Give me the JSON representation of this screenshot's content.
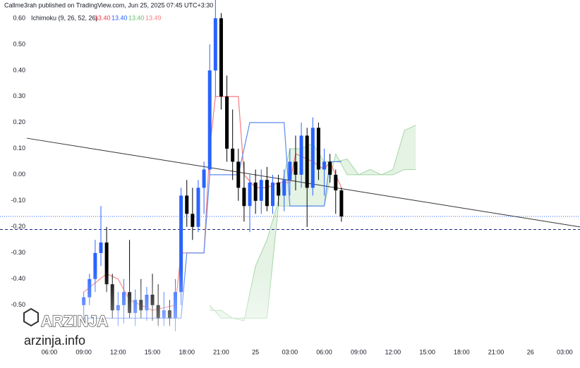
{
  "chart_data": {
    "type": "candlestick",
    "title": "Callme3rah published on TradingView.com, Jun 25, 2025 07:45 UTC+3:30",
    "indicator_label": "Ichimoku (9, 26, 52, 26)",
    "indicator_values": [
      {
        "text": "13.40",
        "color": "#f23645"
      },
      {
        "text": "13.40",
        "color": "#2962ff"
      },
      {
        "text": "13.40",
        "color": "#66bb6a"
      },
      {
        "text": "13.49",
        "color": "#f77c80"
      }
    ],
    "watermark": {
      "brand": "ARZINJA",
      "site": "arzinja.info"
    },
    "xlim": [
      1.69,
      52.33
    ],
    "ylim": [
      -0.66,
      0.67
    ],
    "xticks": [
      {
        "value": 6,
        "label": "06:00"
      },
      {
        "value": 9,
        "label": "09:00"
      },
      {
        "value": 12,
        "label": "12:00"
      },
      {
        "value": 15,
        "label": "15:00"
      },
      {
        "value": 18,
        "label": "18:00"
      },
      {
        "value": 21,
        "label": "21:00"
      },
      {
        "value": 24,
        "label": "25"
      },
      {
        "value": 27,
        "label": "03:00"
      },
      {
        "value": 30,
        "label": "06:00"
      },
      {
        "value": 33,
        "label": "09:00"
      },
      {
        "value": 36,
        "label": "12:00"
      },
      {
        "value": 39,
        "label": "15:00"
      },
      {
        "value": 42,
        "label": "18:00"
      },
      {
        "value": 45,
        "label": "21:00"
      },
      {
        "value": 48,
        "label": "26"
      },
      {
        "value": 51,
        "label": "03:00"
      }
    ],
    "yticks": [
      {
        "value": 0.6,
        "label": "0.60"
      },
      {
        "value": 0.5,
        "label": "0.50"
      },
      {
        "value": 0.4,
        "label": "0.40"
      },
      {
        "value": 0.3,
        "label": "0.30"
      },
      {
        "value": 0.2,
        "label": "0.20"
      },
      {
        "value": 0.1,
        "label": "0.10"
      },
      {
        "value": 0,
        "label": "0.00"
      },
      {
        "value": -0.1,
        "label": "-0.10"
      },
      {
        "value": -0.2,
        "label": "-0.20"
      },
      {
        "value": -0.3,
        "label": "-0.30"
      },
      {
        "value": -0.4,
        "label": "-0.40"
      },
      {
        "value": -0.5,
        "label": "-0.50"
      }
    ],
    "up_color": "#2962ff",
    "down_color": "#000000",
    "candles": {
      "x": [
        9,
        9.5,
        10,
        10.5,
        11,
        11.5,
        12,
        12.5,
        13,
        13.5,
        14,
        14.5,
        15,
        15.5,
        16,
        16.5,
        17,
        17.5,
        18,
        18.5,
        19,
        19.5,
        20,
        20.5,
        21,
        21.5,
        22,
        22.5,
        23,
        23.5,
        24,
        24.5,
        25,
        25.5,
        26,
        26.5,
        27,
        27.5,
        28,
        28.5,
        29,
        29.5,
        30,
        30.5,
        31,
        31.5
      ],
      "open": [
        -0.5,
        -0.47,
        -0.4,
        -0.3,
        -0.26,
        -0.42,
        -0.52,
        -0.5,
        -0.45,
        -0.53,
        -0.48,
        -0.52,
        -0.46,
        -0.5,
        -0.55,
        -0.52,
        -0.55,
        -0.45,
        -0.08,
        -0.15,
        -0.2,
        -0.05,
        0.02,
        0.4,
        0.6,
        0.3,
        0.1,
        0.05,
        -0.05,
        -0.12,
        -0.03,
        -0.1,
        -0.02,
        -0.12,
        -0.03,
        -0.08,
        -0.02,
        0.05,
        0,
        0.15,
        -0.05,
        0.18,
        0.02,
        0.05,
        0,
        -0.06
      ],
      "high": [
        -0.45,
        -0.38,
        -0.25,
        -0.12,
        -0.2,
        -0.38,
        -0.45,
        -0.4,
        -0.25,
        -0.44,
        -0.4,
        -0.43,
        -0.38,
        -0.42,
        -0.45,
        -0.48,
        -0.4,
        -0.05,
        -0.02,
        -0.05,
        -0.02,
        0.05,
        0.5,
        0.67,
        0.62,
        0.38,
        0.25,
        0.1,
        0.05,
        0,
        0.02,
        0.02,
        0.03,
        0,
        0,
        0.02,
        0.1,
        0.15,
        0.2,
        0.18,
        0.22,
        0.2,
        0.1,
        0.08,
        0.02,
        -0.05
      ],
      "low": [
        -0.56,
        -0.5,
        -0.45,
        -0.35,
        -0.45,
        -0.55,
        -0.58,
        -0.57,
        -0.55,
        -0.58,
        -0.55,
        -0.56,
        -0.56,
        -0.58,
        -0.58,
        -0.58,
        -0.6,
        -0.5,
        -0.2,
        -0.25,
        -0.22,
        -0.15,
        0,
        0.3,
        0.25,
        0.05,
        -0.02,
        -0.1,
        -0.18,
        -0.22,
        -0.15,
        -0.15,
        -0.14,
        -0.15,
        -0.12,
        -0.14,
        -0.08,
        -0.06,
        -0.05,
        -0.2,
        -0.08,
        -0.02,
        -0.08,
        -0.03,
        -0.15,
        -0.18
      ],
      "close": [
        -0.47,
        -0.4,
        -0.3,
        -0.26,
        -0.42,
        -0.52,
        -0.5,
        -0.45,
        -0.53,
        -0.48,
        -0.52,
        -0.46,
        -0.5,
        -0.55,
        -0.52,
        -0.55,
        -0.45,
        -0.08,
        -0.15,
        -0.2,
        -0.05,
        0.02,
        0.4,
        0.6,
        0.3,
        0.1,
        0.05,
        -0.05,
        -0.12,
        -0.03,
        -0.1,
        -0.02,
        -0.12,
        -0.03,
        -0.08,
        -0.02,
        0.05,
        0,
        0.15,
        -0.05,
        0.18,
        0.02,
        0.05,
        0,
        -0.06,
        -0.16
      ]
    },
    "lines": [
      {
        "color": "#f77c80",
        "x": [
          9,
          11,
          12,
          13,
          15,
          17,
          17.5,
          18,
          19.5,
          20,
          20.5,
          21,
          22.5,
          23,
          24,
          25,
          26,
          27,
          27.5,
          29,
          30,
          30.5,
          31.5
        ],
        "values": [
          -0.45,
          -0.38,
          -0.4,
          -0.48,
          -0.52,
          -0.5,
          -0.3,
          -0.3,
          -0.3,
          0.1,
          0.3,
          0.3,
          0.3,
          0,
          -0.05,
          -0.05,
          -0.03,
          -0.03,
          0.08,
          0.05,
          0.02,
          0.05,
          -0.05
        ]
      },
      {
        "color": "#5b8def",
        "x": [
          9,
          17.5,
          18,
          19.5,
          20,
          22.5,
          23.5,
          25,
          26.5,
          27,
          30,
          30.5,
          31.5
        ],
        "values": [
          -0.55,
          -0.55,
          -0.3,
          -0.3,
          0,
          0,
          0.2,
          0.2,
          0.2,
          -0.12,
          -0.12,
          0.05,
          0.05
        ]
      }
    ],
    "cloud": {
      "x": [
        20,
        21,
        22,
        23,
        24,
        25,
        26,
        27,
        28,
        29,
        30,
        31,
        32,
        33,
        34,
        35,
        36,
        37,
        38
      ],
      "span_a": [
        -0.52,
        -0.52,
        -0.55,
        -0.56,
        -0.35,
        -0.25,
        -0.1,
        0.1,
        0.1,
        0.12,
        0.05,
        0.05,
        0.06,
        0,
        0.02,
        0,
        0.02,
        0.17,
        0.19
      ],
      "span_b": [
        -0.5,
        -0.55,
        -0.55,
        -0.55,
        -0.55,
        -0.55,
        -0.12,
        -0.12,
        -0.12,
        -0.12,
        -0.12,
        0.08,
        0,
        0,
        0,
        0,
        0,
        0.02,
        0.02
      ],
      "color": "#a5d6a7"
    },
    "trend_line": {
      "x": [
        4.03,
        52.33
      ],
      "values": [
        0.14,
        -0.2
      ],
      "color": "#333333"
    },
    "price_lines": [
      {
        "value": -0.16,
        "color": "#2962ff",
        "dash": "1,2"
      },
      {
        "value": -0.21,
        "color": "#1a237e",
        "dash": "4,3"
      }
    ]
  }
}
